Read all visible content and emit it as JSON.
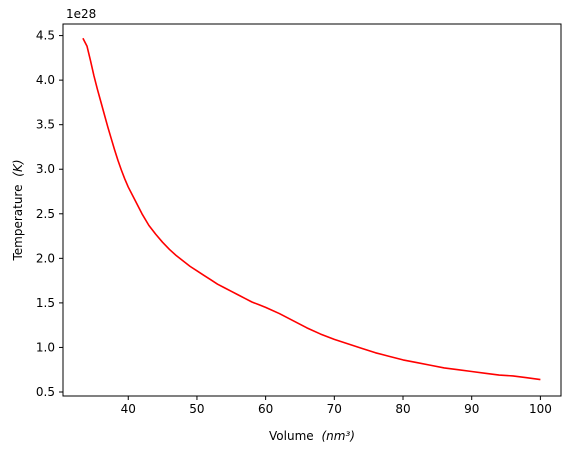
{
  "chart_data": {
    "type": "line",
    "title": "",
    "xlabel": "Volume",
    "xlabel_unit": "(nm³)",
    "ylabel": "Temperature",
    "ylabel_unit": "(K)",
    "y_offset_label": "1e28",
    "xlim": [
      30.5,
      103.0
    ],
    "ylim": [
      0.455,
      4.63
    ],
    "x_ticks": [
      40,
      50,
      60,
      70,
      80,
      90,
      100
    ],
    "x_tick_labels": [
      "40",
      "50",
      "60",
      "70",
      "80",
      "90",
      "100"
    ],
    "y_ticks": [
      0.5,
      1.0,
      1.5,
      2.0,
      2.5,
      3.0,
      3.5,
      4.0,
      4.5
    ],
    "y_tick_labels": [
      "0.5",
      "1.0",
      "1.5",
      "2.0",
      "2.5",
      "3.0",
      "3.5",
      "4.0",
      "4.5"
    ],
    "grid": false,
    "legend": "none",
    "series": [
      {
        "color": "#ff0000",
        "x": [
          33.4,
          34.0,
          34.5,
          35.0,
          35.5,
          36.0,
          36.5,
          37.0,
          37.5,
          38.0,
          38.5,
          39.0,
          39.5,
          40.0,
          41.0,
          42.0,
          43.0,
          44.0,
          45.0,
          46.0,
          47.0,
          48.0,
          49.0,
          50.0,
          51.0,
          52.0,
          53.0,
          54.0,
          55.0,
          56.0,
          57.0,
          58.0,
          59.0,
          60.0,
          62.0,
          64.0,
          66.0,
          68.0,
          70.0,
          72.0,
          74.0,
          76.0,
          78.0,
          80.0,
          82.0,
          84.0,
          86.0,
          88.0,
          90.0,
          92.0,
          94.0,
          96.0,
          98.0,
          100.0
        ],
        "y": [
          4.47,
          4.38,
          4.22,
          4.05,
          3.9,
          3.76,
          3.62,
          3.48,
          3.35,
          3.22,
          3.1,
          2.99,
          2.89,
          2.8,
          2.65,
          2.5,
          2.37,
          2.27,
          2.18,
          2.1,
          2.03,
          1.97,
          1.91,
          1.86,
          1.81,
          1.76,
          1.71,
          1.67,
          1.63,
          1.59,
          1.55,
          1.51,
          1.48,
          1.45,
          1.38,
          1.3,
          1.22,
          1.15,
          1.09,
          1.04,
          0.99,
          0.94,
          0.9,
          0.86,
          0.83,
          0.8,
          0.77,
          0.75,
          0.73,
          0.71,
          0.69,
          0.68,
          0.66,
          0.64
        ]
      }
    ]
  }
}
